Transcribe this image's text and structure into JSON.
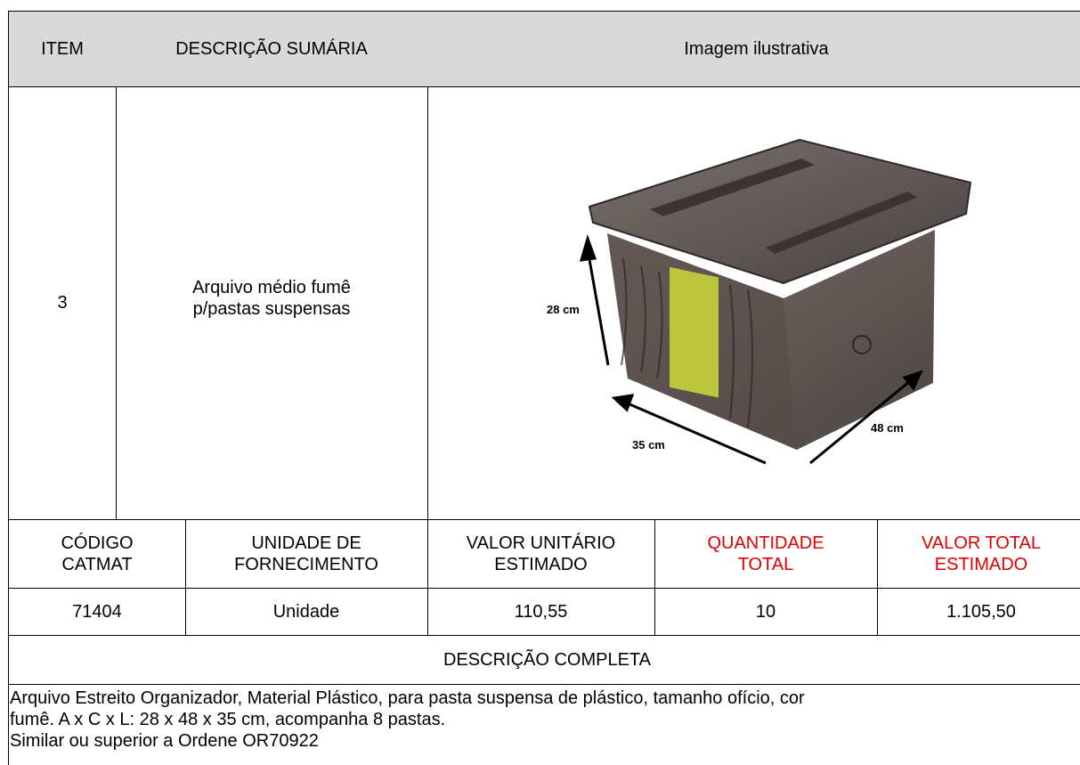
{
  "header": {
    "item": "ITEM",
    "descricao_sumaria": "DESCRIÇÃO SUMÁRIA",
    "imagem": "Imagem ilustrativa"
  },
  "item": {
    "numero": "3",
    "descricao": [
      "Arquivo médio fumê",
      "p/pastas suspensas"
    ]
  },
  "image": {
    "height_label": "28 cm",
    "width_label": "35 cm",
    "depth_label": "48 cm"
  },
  "columns": [
    [
      "CÓDIGO",
      "CATMAT"
    ],
    [
      "UNIDADE DE",
      "FORNECIMENTO"
    ],
    [
      "VALOR UNITÁRIO",
      "ESTIMADO"
    ],
    [
      "QUANTIDADE",
      "TOTAL"
    ],
    [
      "VALOR TOTAL",
      "ESTIMADO"
    ]
  ],
  "values": [
    "71404",
    "Unidade",
    "110,55",
    "10",
    "1.105,50"
  ],
  "descricao_completa": {
    "title": "DESCRIÇÃO COMPLETA",
    "lines": [
      "Arquivo Estreito Organizador, Material Plástico, para pasta suspensa de plástico, tamanho ofício, cor",
      "fumê. A x C x L: 28 x 48 x 35 cm, acompanha 8 pastas.",
      "Similar ou superior a Ordene OR70922"
    ]
  }
}
